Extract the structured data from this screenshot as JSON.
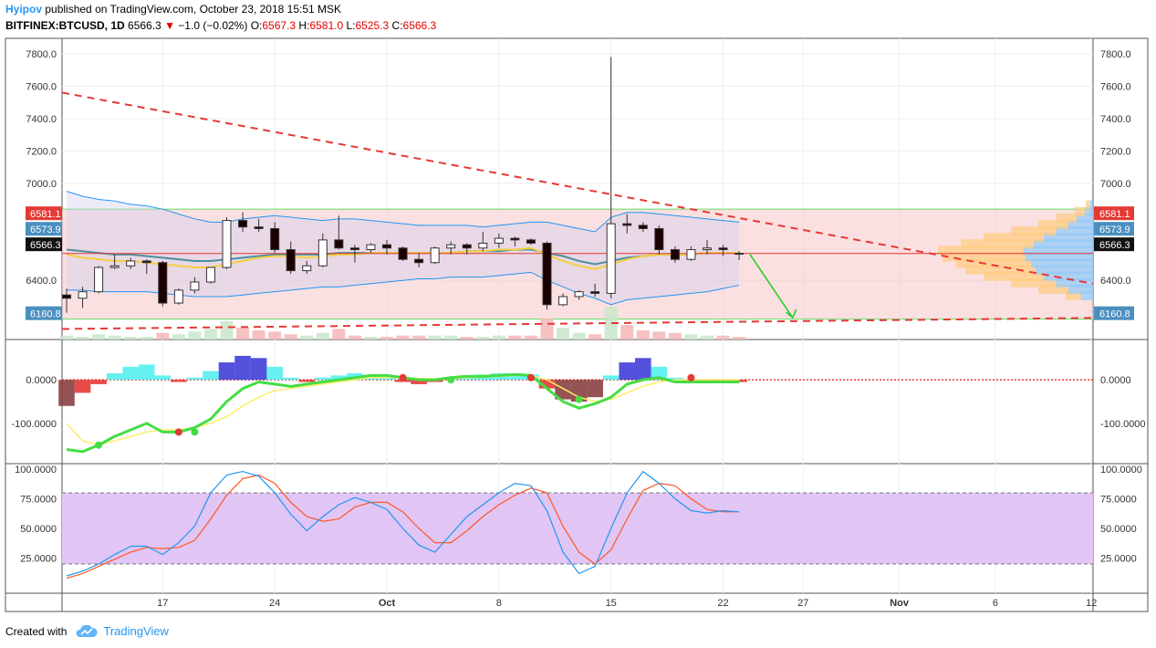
{
  "header": {
    "author": "Hyipov",
    "published": "published on TradingView.com, October 23, 2018 15:51 MSK",
    "symbol": "BITFINEX:BTCUSD, 1D",
    "last": "6566.3",
    "arrow": "▼",
    "change": "−1.0 (−0.02%)",
    "o_label": "O:",
    "o": "6567.3",
    "h_label": "H:",
    "h": "6581.0",
    "l_label": "L:",
    "l": "6525.3",
    "c_label": "C:",
    "c": "6566.3"
  },
  "footer": {
    "created_with": "Created with",
    "brand": "TradingView",
    "logo_icon": "tradingview-cloud-icon"
  },
  "colors": {
    "up": "#ffffff",
    "down": "#1a0000",
    "channel": "#f5c6c6",
    "dashed": "#e53935",
    "bb": "#2196f3",
    "ema_fast": "#f4d03f",
    "ema_slow": "#4a8fa0",
    "stoch_bg": "#e1c5f5"
  },
  "chart_data": [
    {
      "type": "candlestick",
      "name": "price",
      "ylim": [
        6080,
        7850
      ],
      "y_ticks": [
        "7800.0",
        "7600.0",
        "7400.0",
        "7200.0",
        "7000.0",
        "6400.0"
      ],
      "x_ticks": [
        "17",
        "24",
        "Oct",
        "8",
        "15",
        "22",
        "27",
        "Nov",
        "6",
        "12"
      ],
      "dates": [
        "2018-09-11",
        "2018-09-12",
        "2018-09-13",
        "2018-09-14",
        "2018-09-15",
        "2018-09-16",
        "2018-09-17",
        "2018-09-18",
        "2018-09-19",
        "2018-09-20",
        "2018-09-21",
        "2018-09-22",
        "2018-09-23",
        "2018-09-24",
        "2018-09-25",
        "2018-09-26",
        "2018-09-27",
        "2018-09-28",
        "2018-09-29",
        "2018-09-30",
        "2018-10-01",
        "2018-10-02",
        "2018-10-03",
        "2018-10-04",
        "2018-10-05",
        "2018-10-06",
        "2018-10-07",
        "2018-10-08",
        "2018-10-09",
        "2018-10-10",
        "2018-10-11",
        "2018-10-12",
        "2018-10-13",
        "2018-10-14",
        "2018-10-15",
        "2018-10-16",
        "2018-10-17",
        "2018-10-18",
        "2018-10-19",
        "2018-10-20",
        "2018-10-21",
        "2018-10-22",
        "2018-10-23"
      ],
      "candles": [
        [
          6310,
          6350,
          6200,
          6290
        ],
        [
          6290,
          6360,
          6230,
          6330
        ],
        [
          6330,
          6490,
          6320,
          6480
        ],
        [
          6480,
          6560,
          6470,
          6490
        ],
        [
          6490,
          6540,
          6470,
          6520
        ],
        [
          6520,
          6530,
          6440,
          6510
        ],
        [
          6510,
          6520,
          6240,
          6260
        ],
        [
          6260,
          6350,
          6250,
          6340
        ],
        [
          6340,
          6420,
          6320,
          6390
        ],
        [
          6390,
          6480,
          6380,
          6480
        ],
        [
          6480,
          6790,
          6470,
          6770
        ],
        [
          6770,
          6820,
          6700,
          6730
        ],
        [
          6730,
          6780,
          6700,
          6720
        ],
        [
          6720,
          6760,
          6570,
          6590
        ],
        [
          6590,
          6640,
          6440,
          6460
        ],
        [
          6460,
          6520,
          6440,
          6490
        ],
        [
          6490,
          6690,
          6480,
          6650
        ],
        [
          6650,
          6800,
          6590,
          6600
        ],
        [
          6600,
          6620,
          6510,
          6590
        ],
        [
          6590,
          6630,
          6570,
          6620
        ],
        [
          6620,
          6650,
          6560,
          6600
        ],
        [
          6600,
          6610,
          6520,
          6530
        ],
        [
          6530,
          6570,
          6480,
          6510
        ],
        [
          6510,
          6610,
          6500,
          6600
        ],
        [
          6600,
          6640,
          6560,
          6620
        ],
        [
          6620,
          6630,
          6560,
          6600
        ],
        [
          6600,
          6700,
          6580,
          6630
        ],
        [
          6630,
          6690,
          6600,
          6660
        ],
        [
          6660,
          6670,
          6610,
          6650
        ],
        [
          6650,
          6660,
          6620,
          6630
        ],
        [
          6630,
          6640,
          6220,
          6250
        ],
        [
          6250,
          6320,
          6240,
          6300
        ],
        [
          6300,
          6340,
          6280,
          6330
        ],
        [
          6330,
          6380,
          6300,
          6320
        ],
        [
          6320,
          7780,
          6290,
          6750
        ],
        [
          6750,
          6810,
          6690,
          6740
        ],
        [
          6740,
          6760,
          6700,
          6720
        ],
        [
          6720,
          6740,
          6560,
          6590
        ],
        [
          6590,
          6610,
          6510,
          6530
        ],
        [
          6530,
          6610,
          6520,
          6590
        ],
        [
          6590,
          6650,
          6560,
          6600
        ],
        [
          6600,
          6620,
          6550,
          6590
        ],
        [
          6567.3,
          6581,
          6525.3,
          6566.3
        ]
      ],
      "bollinger_upper": [
        6950,
        6920,
        6900,
        6890,
        6870,
        6860,
        6840,
        6810,
        6780,
        6760,
        6760,
        6780,
        6790,
        6800,
        6790,
        6780,
        6770,
        6780,
        6780,
        6770,
        6760,
        6750,
        6740,
        6740,
        6740,
        6740,
        6730,
        6740,
        6750,
        6760,
        6760,
        6740,
        6720,
        6700,
        6790,
        6820,
        6820,
        6810,
        6800,
        6790,
        6780,
        6770,
        6760
      ],
      "bollinger_lower": [
        6340,
        6340,
        6330,
        6330,
        6330,
        6330,
        6320,
        6310,
        6300,
        6300,
        6300,
        6310,
        6320,
        6330,
        6340,
        6350,
        6360,
        6360,
        6370,
        6380,
        6390,
        6400,
        6410,
        6410,
        6420,
        6420,
        6420,
        6430,
        6440,
        6450,
        6400,
        6360,
        6320,
        6290,
        6250,
        6280,
        6290,
        6300,
        6310,
        6320,
        6330,
        6350,
        6370
      ],
      "ema_fast": [
        6560,
        6540,
        6530,
        6520,
        6520,
        6510,
        6500,
        6490,
        6480,
        6480,
        6500,
        6520,
        6540,
        6550,
        6550,
        6540,
        6550,
        6560,
        6560,
        6570,
        6570,
        6570,
        6570,
        6570,
        6570,
        6580,
        6580,
        6590,
        6590,
        6600,
        6560,
        6520,
        6490,
        6470,
        6500,
        6530,
        6550,
        6560,
        6560,
        6560,
        6570,
        6570,
        6570
      ],
      "ema_slow": [
        6590,
        6580,
        6570,
        6560,
        6560,
        6550,
        6540,
        6530,
        6520,
        6520,
        6530,
        6540,
        6550,
        6560,
        6560,
        6560,
        6560,
        6570,
        6570,
        6570,
        6570,
        6570,
        6570,
        6570,
        6570,
        6580,
        6580,
        6580,
        6590,
        6590,
        6570,
        6550,
        6520,
        6500,
        6520,
        6540,
        6550,
        6560,
        6560,
        6560,
        6570,
        6570,
        6570
      ],
      "volume": [
        3,
        2,
        4,
        3,
        2,
        2,
        5,
        4,
        6,
        8,
        14,
        9,
        7,
        6,
        4,
        3,
        5,
        8,
        3,
        2,
        2,
        3,
        3,
        3,
        3,
        2,
        2,
        3,
        3,
        3,
        16,
        9,
        5,
        4,
        25,
        11,
        7,
        6,
        5,
        4,
        3,
        3,
        2
      ],
      "volume_down": [
        false,
        false,
        false,
        false,
        false,
        false,
        true,
        false,
        false,
        false,
        false,
        true,
        true,
        true,
        true,
        false,
        false,
        true,
        true,
        false,
        true,
        true,
        true,
        false,
        false,
        true,
        false,
        false,
        true,
        true,
        true,
        false,
        false,
        true,
        false,
        true,
        true,
        true,
        true,
        false,
        false,
        true,
        true
      ],
      "resistance_line": [
        6840,
        6840
      ],
      "support_line": [
        6160.8,
        6160.8
      ],
      "price_labels": [
        "6581.1",
        "6573.9",
        "6566.3",
        "6160.8"
      ],
      "last_price": 6566.3
    },
    {
      "type": "area",
      "name": "momentum",
      "ylim": [
        -180,
        80
      ],
      "y_ticks": [
        "0.0000",
        "-100.0000"
      ],
      "histogram": [
        -60,
        -30,
        -10,
        15,
        30,
        35,
        10,
        -5,
        5,
        20,
        40,
        55,
        50,
        30,
        5,
        -5,
        5,
        10,
        15,
        10,
        5,
        -5,
        -10,
        -5,
        5,
        10,
        12,
        15,
        15,
        12,
        -20,
        -45,
        -50,
        -40,
        10,
        40,
        50,
        30,
        5,
        -5,
        -5,
        -5,
        -5
      ],
      "line_fast": [
        -160,
        -165,
        -150,
        -130,
        -115,
        -100,
        -120,
        -120,
        -110,
        -90,
        -50,
        -20,
        -5,
        -10,
        -15,
        -10,
        -5,
        0,
        5,
        10,
        10,
        5,
        0,
        0,
        5,
        8,
        8,
        10,
        12,
        10,
        -20,
        -50,
        -65,
        -55,
        -40,
        -10,
        0,
        5,
        -5,
        -5,
        -5,
        -5,
        -5
      ],
      "line_slow": [
        -100,
        -140,
        -150,
        -140,
        -130,
        -120,
        -115,
        -115,
        -110,
        -100,
        -85,
        -60,
        -40,
        -25,
        -20,
        -15,
        -10,
        -5,
        0,
        5,
        5,
        5,
        3,
        2,
        3,
        5,
        6,
        8,
        10,
        10,
        0,
        -20,
        -40,
        -50,
        -45,
        -30,
        -15,
        -5,
        0,
        0,
        0,
        0,
        0
      ]
    },
    {
      "type": "line",
      "name": "stochastic",
      "ylim": [
        0,
        100
      ],
      "y_ticks": [
        "100.0000",
        "75.0000",
        "50.0000",
        "25.0000"
      ],
      "band": [
        20,
        80
      ],
      "series": [
        {
          "values": [
            10,
            14,
            20,
            28,
            35,
            35,
            28,
            38,
            52,
            80,
            95,
            98,
            94,
            80,
            62,
            48,
            60,
            70,
            76,
            72,
            66,
            50,
            36,
            30,
            45,
            60,
            70,
            80,
            88,
            86,
            65,
            30,
            12,
            18,
            50,
            80,
            98,
            88,
            75,
            65,
            63,
            65,
            64
          ]
        },
        {
          "values": [
            8,
            12,
            18,
            24,
            30,
            34,
            33,
            34,
            40,
            58,
            78,
            92,
            95,
            88,
            72,
            60,
            56,
            58,
            68,
            72,
            72,
            64,
            50,
            38,
            38,
            48,
            60,
            70,
            78,
            84,
            80,
            52,
            30,
            20,
            32,
            58,
            82,
            88,
            86,
            75,
            66,
            64,
            64
          ]
        }
      ]
    }
  ]
}
